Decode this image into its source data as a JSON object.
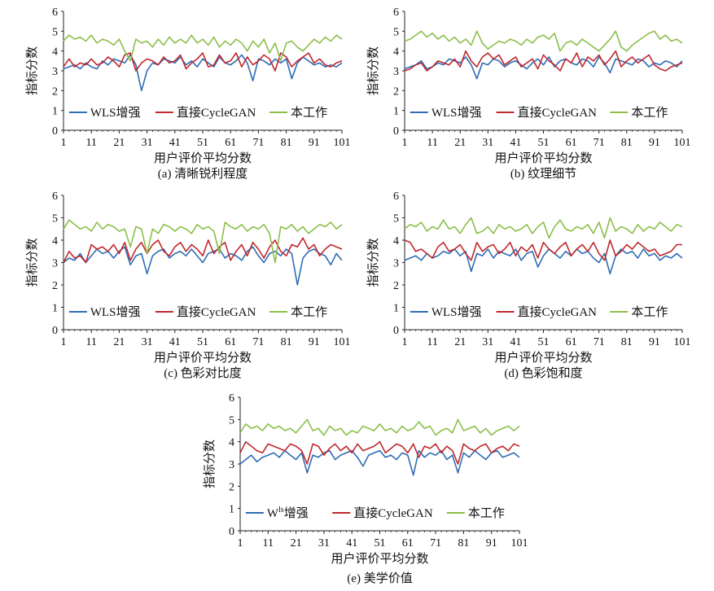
{
  "figure": {
    "ylabel": "指标分数",
    "xlabel": "用户评价平均分数",
    "colors": {
      "wls": "#2e6db4",
      "cyclegan": "#c0282d",
      "ours": "#8cbf4a"
    }
  },
  "chart_data": [
    {
      "id": "a",
      "type": "line",
      "title": "(a) 清晰锐利程度",
      "xlabel": "用户评价平均分数",
      "ylabel": "指标分数",
      "xlim": [
        1,
        101
      ],
      "ylim": [
        0,
        6
      ],
      "x_ticks": [
        1,
        11,
        21,
        31,
        41,
        51,
        61,
        71,
        81,
        91,
        101
      ],
      "y_ticks": [
        0,
        1,
        2,
        3,
        4,
        5,
        6
      ],
      "grid": false,
      "legend_position": "bottom",
      "x_step": 2,
      "series": [
        {
          "key": "wls",
          "name": "WLS增强",
          "color": "#2e6db4",
          "values": [
            3.1,
            3.2,
            3.3,
            3.1,
            3.4,
            3.2,
            3.1,
            3.5,
            3.3,
            3.6,
            3.5,
            3.4,
            3.8,
            3.3,
            2.0,
            3.0,
            3.4,
            3.3,
            3.6,
            3.5,
            3.4,
            3.7,
            3.3,
            3.5,
            3.2,
            3.6,
            3.4,
            3.2,
            3.7,
            3.4,
            3.3,
            3.5,
            3.8,
            3.4,
            2.5,
            3.6,
            3.5,
            3.3,
            3.6,
            3.4,
            3.6,
            2.6,
            3.4,
            3.7,
            3.5,
            3.3,
            3.4,
            3.2,
            3.3,
            3.2,
            3.4
          ]
        },
        {
          "key": "cyclegan",
          "name": "直接CycleGAN",
          "color": "#c0282d",
          "values": [
            3.2,
            3.6,
            3.2,
            3.4,
            3.3,
            3.6,
            3.3,
            3.4,
            3.7,
            3.5,
            3.2,
            3.8,
            3.9,
            3.0,
            3.4,
            3.6,
            3.5,
            3.3,
            3.7,
            3.4,
            3.5,
            3.8,
            3.1,
            3.4,
            3.6,
            3.9,
            3.2,
            3.3,
            3.8,
            3.4,
            3.5,
            3.9,
            3.2,
            3.7,
            3.3,
            3.5,
            3.8,
            3.6,
            3.0,
            3.9,
            3.7,
            3.2,
            3.5,
            3.7,
            3.9,
            3.4,
            3.6,
            3.3,
            3.2,
            3.4,
            3.5
          ]
        },
        {
          "key": "ours",
          "name": "本工作",
          "color": "#8cbf4a",
          "values": [
            4.5,
            4.8,
            4.6,
            4.7,
            4.5,
            4.8,
            4.4,
            4.6,
            4.5,
            4.3,
            4.6,
            4.0,
            3.5,
            4.6,
            4.4,
            4.5,
            4.2,
            4.6,
            4.3,
            4.7,
            4.4,
            4.6,
            4.4,
            4.8,
            4.4,
            4.6,
            4.3,
            4.7,
            4.2,
            4.5,
            4.3,
            4.6,
            4.4,
            4.0,
            4.5,
            4.2,
            4.6,
            3.9,
            4.4,
            3.5,
            4.4,
            4.5,
            4.2,
            4.0,
            4.3,
            4.6,
            4.4,
            4.7,
            4.5,
            4.8,
            4.6
          ]
        }
      ]
    },
    {
      "id": "b",
      "type": "line",
      "title": "(b) 纹理细节",
      "xlabel": "用户评价平均分数",
      "ylabel": "指标分数",
      "xlim": [
        1,
        101
      ],
      "ylim": [
        0,
        6
      ],
      "x_ticks": [
        1,
        11,
        21,
        31,
        41,
        51,
        61,
        71,
        81,
        91,
        101
      ],
      "y_ticks": [
        0,
        1,
        2,
        3,
        4,
        5,
        6
      ],
      "grid": false,
      "legend_position": "bottom",
      "x_step": 2,
      "series": [
        {
          "key": "wls",
          "name": "WLS增强",
          "color": "#2e6db4",
          "values": [
            3.1,
            3.2,
            3.3,
            3.5,
            3.1,
            3.2,
            3.4,
            3.3,
            3.6,
            3.5,
            3.4,
            3.7,
            3.3,
            2.6,
            3.4,
            3.3,
            3.6,
            3.5,
            3.2,
            3.4,
            3.5,
            3.3,
            3.1,
            3.4,
            3.6,
            3.3,
            3.7,
            3.2,
            3.5,
            3.6,
            3.4,
            3.3,
            3.6,
            3.5,
            3.2,
            3.7,
            3.4,
            2.9,
            3.6,
            3.5,
            3.4,
            3.3,
            3.6,
            3.5,
            3.2,
            3.4,
            3.3,
            3.5,
            3.4,
            3.2,
            3.5
          ]
        },
        {
          "key": "cyclegan",
          "name": "直接CycleGAN",
          "color": "#c0282d",
          "values": [
            3.0,
            3.1,
            3.3,
            3.4,
            3.0,
            3.2,
            3.5,
            3.4,
            3.3,
            3.6,
            3.2,
            4.0,
            3.5,
            3.2,
            3.7,
            3.9,
            3.6,
            3.8,
            3.3,
            3.5,
            3.7,
            3.2,
            3.4,
            3.6,
            3.1,
            3.8,
            3.5,
            3.3,
            3.0,
            3.6,
            3.4,
            3.9,
            3.2,
            3.7,
            3.5,
            3.8,
            3.3,
            3.6,
            4.0,
            3.2,
            3.5,
            3.7,
            3.4,
            3.6,
            3.8,
            3.3,
            3.1,
            3.0,
            3.2,
            3.3,
            3.4
          ]
        },
        {
          "key": "ours",
          "name": "本工作",
          "color": "#8cbf4a",
          "values": [
            4.5,
            4.6,
            4.8,
            5.0,
            4.7,
            4.9,
            4.6,
            4.8,
            4.5,
            4.7,
            4.4,
            4.6,
            4.3,
            5.0,
            4.4,
            4.1,
            4.3,
            4.5,
            4.4,
            4.6,
            4.5,
            4.3,
            4.6,
            4.4,
            4.7,
            4.8,
            4.6,
            4.9,
            4.0,
            4.4,
            4.5,
            4.3,
            4.6,
            4.4,
            4.2,
            4.0,
            4.3,
            4.6,
            5.0,
            4.2,
            4.0,
            4.3,
            4.5,
            4.7,
            4.9,
            5.0,
            4.6,
            4.8,
            4.5,
            4.6,
            4.4
          ]
        }
      ]
    },
    {
      "id": "c",
      "type": "line",
      "title": "(c) 色彩对比度",
      "xlabel": "用户评价平均分数",
      "ylabel": "指标分数",
      "xlim": [
        1,
        101
      ],
      "ylim": [
        0,
        6
      ],
      "x_ticks": [
        1,
        11,
        21,
        31,
        41,
        51,
        61,
        71,
        81,
        91,
        101
      ],
      "y_ticks": [
        0,
        1,
        2,
        3,
        4,
        5,
        6
      ],
      "grid": false,
      "legend_position": "bottom",
      "x_step": 2,
      "series": [
        {
          "key": "wls",
          "name": "WLS增强",
          "color": "#2e6db4",
          "values": [
            3.0,
            3.2,
            3.1,
            3.4,
            3.0,
            3.3,
            3.6,
            3.4,
            3.5,
            3.2,
            3.5,
            3.7,
            2.9,
            3.3,
            3.4,
            2.5,
            3.3,
            3.5,
            3.6,
            3.2,
            3.4,
            3.5,
            3.3,
            3.6,
            3.3,
            3.0,
            3.4,
            3.5,
            3.6,
            3.2,
            3.4,
            3.3,
            3.1,
            3.5,
            3.7,
            3.3,
            3.0,
            3.4,
            3.5,
            3.3,
            3.6,
            3.4,
            2.0,
            3.2,
            3.5,
            3.6,
            3.4,
            3.3,
            2.9,
            3.4,
            3.1
          ]
        },
        {
          "key": "cyclegan",
          "name": "直接CycleGAN",
          "color": "#c0282d",
          "values": [
            3.0,
            3.5,
            3.2,
            3.3,
            3.0,
            3.8,
            3.6,
            3.7,
            3.5,
            3.8,
            3.4,
            3.9,
            3.1,
            3.6,
            3.9,
            3.4,
            3.8,
            4.0,
            3.5,
            3.3,
            3.7,
            3.9,
            3.5,
            3.8,
            3.6,
            3.3,
            4.0,
            3.4,
            3.7,
            3.9,
            3.1,
            3.5,
            3.8,
            3.3,
            3.9,
            3.6,
            3.2,
            3.7,
            4.0,
            3.5,
            3.3,
            3.8,
            3.7,
            4.1,
            3.6,
            3.8,
            3.3,
            3.6,
            3.8,
            3.7,
            3.6
          ]
        },
        {
          "key": "ours",
          "name": "本工作",
          "color": "#8cbf4a",
          "values": [
            4.5,
            4.9,
            4.7,
            4.5,
            4.6,
            4.4,
            4.8,
            4.5,
            4.7,
            4.6,
            4.4,
            4.5,
            3.7,
            4.6,
            4.5,
            3.4,
            4.5,
            4.3,
            4.7,
            4.6,
            4.4,
            4.6,
            4.5,
            4.3,
            4.7,
            4.5,
            4.6,
            4.4,
            3.4,
            4.8,
            4.6,
            4.5,
            4.7,
            4.4,
            4.6,
            4.5,
            4.7,
            4.3,
            3.0,
            4.6,
            4.5,
            4.7,
            4.4,
            4.6,
            4.3,
            4.5,
            4.7,
            4.6,
            4.8,
            4.5,
            4.7
          ]
        }
      ]
    },
    {
      "id": "d",
      "type": "line",
      "title": "(d) 色彩饱和度",
      "xlabel": "用户评价平均分数",
      "ylabel": "指标分数",
      "xlim": [
        1,
        101
      ],
      "ylim": [
        0,
        6
      ],
      "x_ticks": [
        1,
        11,
        21,
        31,
        41,
        51,
        61,
        71,
        81,
        91,
        101
      ],
      "y_ticks": [
        0,
        1,
        2,
        3,
        4,
        5,
        6
      ],
      "grid": false,
      "legend_position": "bottom",
      "x_step": 2,
      "series": [
        {
          "key": "wls",
          "name": "WLS增强",
          "color": "#2e6db4",
          "values": [
            3.1,
            3.2,
            3.3,
            3.1,
            3.4,
            3.2,
            3.3,
            3.5,
            3.4,
            3.6,
            3.3,
            3.5,
            2.6,
            3.4,
            3.3,
            3.6,
            3.2,
            3.5,
            3.4,
            3.3,
            3.6,
            3.1,
            3.4,
            3.5,
            2.8,
            3.3,
            3.6,
            3.4,
            3.2,
            3.5,
            3.3,
            3.6,
            3.4,
            3.5,
            3.2,
            3.0,
            3.4,
            2.5,
            3.3,
            3.6,
            3.4,
            3.5,
            3.2,
            3.6,
            3.3,
            3.4,
            3.1,
            3.3,
            3.2,
            3.4,
            3.2
          ]
        },
        {
          "key": "cyclegan",
          "name": "直接CycleGAN",
          "color": "#c0282d",
          "values": [
            4.0,
            3.9,
            3.5,
            3.6,
            3.4,
            3.2,
            3.7,
            3.9,
            3.5,
            3.6,
            3.8,
            3.4,
            3.1,
            3.9,
            3.5,
            3.7,
            3.8,
            3.4,
            3.6,
            3.9,
            3.3,
            3.7,
            3.5,
            3.8,
            3.2,
            3.9,
            3.6,
            3.4,
            3.7,
            3.9,
            3.3,
            3.6,
            3.8,
            3.5,
            3.9,
            3.4,
            3.1,
            4.0,
            3.3,
            3.5,
            3.8,
            3.6,
            3.9,
            3.7,
            3.5,
            3.6,
            3.3,
            3.4,
            3.5,
            3.8,
            3.8
          ]
        },
        {
          "key": "ours",
          "name": "本工作",
          "color": "#8cbf4a",
          "values": [
            4.5,
            4.7,
            4.6,
            4.8,
            4.4,
            4.6,
            4.5,
            4.9,
            4.5,
            4.6,
            4.3,
            4.7,
            5.0,
            4.3,
            4.4,
            4.6,
            4.3,
            4.7,
            4.5,
            4.6,
            4.4,
            4.5,
            4.7,
            4.3,
            4.6,
            4.8,
            4.1,
            4.6,
            4.9,
            4.5,
            4.4,
            4.6,
            4.5,
            4.7,
            4.3,
            4.8,
            4.1,
            5.0,
            4.4,
            4.6,
            4.5,
            4.3,
            4.7,
            4.4,
            4.6,
            4.5,
            4.8,
            4.6,
            4.4,
            4.7,
            4.6
          ]
        }
      ]
    },
    {
      "id": "e",
      "type": "line",
      "title": "(e) 美学价值",
      "xlabel": "用户评价平均分数",
      "ylabel": "指标分数",
      "xlim": [
        1,
        101
      ],
      "ylim": [
        0,
        6
      ],
      "x_ticks": [
        1,
        11,
        21,
        31,
        41,
        51,
        61,
        71,
        81,
        91,
        101
      ],
      "y_ticks": [
        0,
        1,
        2,
        3,
        4,
        5,
        6
      ],
      "grid": false,
      "legend_position": "bottom",
      "x_step": 2,
      "series": [
        {
          "key": "wls",
          "name": "W",
          "name_sup": "ls",
          "name_suffix": "增强",
          "color": "#2e6db4",
          "values": [
            3.0,
            3.2,
            3.4,
            3.1,
            3.3,
            3.4,
            3.5,
            3.3,
            3.6,
            3.4,
            3.2,
            3.5,
            2.6,
            3.4,
            3.3,
            3.5,
            3.6,
            3.2,
            3.4,
            3.5,
            3.6,
            3.3,
            2.9,
            3.4,
            3.5,
            3.6,
            3.3,
            3.4,
            3.2,
            3.5,
            3.4,
            2.5,
            3.6,
            3.3,
            3.5,
            3.4,
            3.6,
            3.2,
            3.4,
            2.6,
            3.5,
            3.3,
            3.6,
            3.4,
            3.2,
            3.5,
            3.6,
            3.3,
            3.4,
            3.5,
            3.3
          ]
        },
        {
          "key": "cyclegan",
          "name": "直接CycleGAN",
          "color": "#c0282d",
          "values": [
            3.5,
            4.0,
            3.8,
            3.6,
            3.5,
            3.9,
            3.8,
            3.7,
            3.6,
            3.9,
            3.8,
            3.6,
            3.0,
            3.9,
            3.8,
            3.4,
            3.7,
            3.9,
            3.6,
            3.8,
            3.5,
            3.9,
            3.6,
            3.7,
            3.8,
            4.0,
            3.5,
            3.7,
            3.9,
            3.8,
            3.5,
            3.9,
            3.3,
            3.8,
            3.7,
            3.9,
            3.5,
            3.8,
            3.6,
            3.0,
            3.9,
            3.7,
            3.6,
            3.8,
            3.9,
            3.5,
            3.7,
            3.8,
            3.6,
            3.9,
            3.8
          ]
        },
        {
          "key": "ours",
          "name": "本工作",
          "color": "#8cbf4a",
          "values": [
            4.4,
            4.8,
            4.6,
            4.7,
            4.5,
            4.8,
            4.6,
            4.7,
            4.5,
            4.6,
            4.4,
            4.7,
            5.0,
            4.5,
            4.6,
            4.3,
            4.7,
            4.5,
            4.6,
            4.3,
            4.5,
            4.4,
            4.7,
            4.6,
            4.5,
            4.8,
            4.5,
            4.6,
            4.4,
            4.7,
            4.5,
            4.6,
            4.9,
            4.6,
            4.7,
            4.3,
            4.5,
            4.6,
            4.4,
            5.0,
            4.5,
            4.6,
            4.7,
            4.4,
            4.6,
            4.3,
            4.5,
            4.6,
            4.7,
            4.5,
            4.7
          ]
        }
      ]
    }
  ]
}
